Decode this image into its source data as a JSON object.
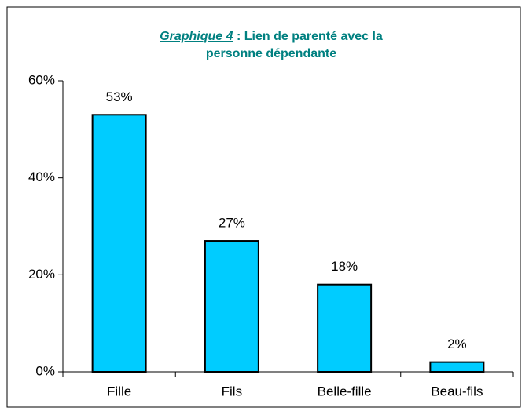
{
  "chart_data": {
    "type": "bar",
    "title_label": "Graphique 4",
    "title": ": Lien de parenté avec la personne dépendante",
    "categories": [
      "Fille",
      "Fils",
      "Belle-fille",
      "Beau-fils"
    ],
    "values": [
      53,
      27,
      18,
      2
    ],
    "value_labels": [
      "53%",
      "27%",
      "18%",
      "2%"
    ],
    "color": "#00ccff",
    "ylim": [
      0,
      60
    ],
    "yticks": [
      {
        "value": 0,
        "label": "0%"
      },
      {
        "value": 20,
        "label": "20%"
      },
      {
        "value": 40,
        "label": "40%"
      },
      {
        "value": 60,
        "label": "60%"
      }
    ],
    "grid": false
  }
}
